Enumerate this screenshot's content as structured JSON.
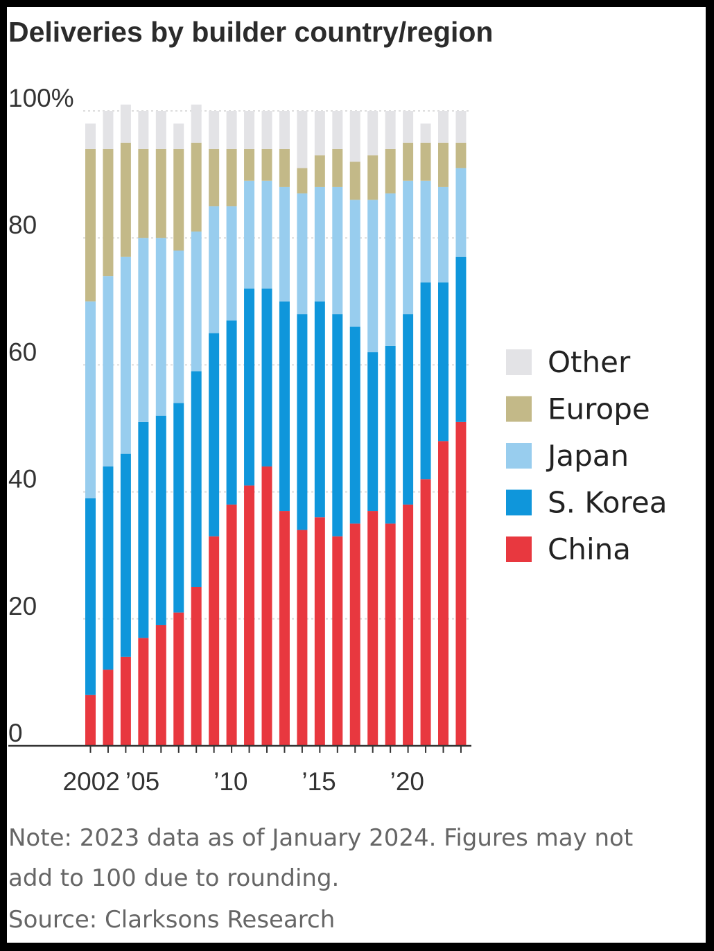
{
  "chart_data": {
    "type": "bar",
    "stacked": true,
    "title": "Deliveries by builder country/region",
    "ylim": [
      0,
      100
    ],
    "y_ticks": [
      {
        "value": 100,
        "label": "100%"
      },
      {
        "value": 80,
        "label": "80"
      },
      {
        "value": 60,
        "label": "60"
      },
      {
        "value": 40,
        "label": "40"
      },
      {
        "value": 20,
        "label": "20"
      },
      {
        "value": 0,
        "label": "0"
      }
    ],
    "x_ticks": [
      {
        "year": 2002,
        "label": "2002"
      },
      {
        "year": 2005,
        "label": "’05"
      },
      {
        "year": 2010,
        "label": "’10"
      },
      {
        "year": 2015,
        "label": "’15"
      },
      {
        "year": 2020,
        "label": "’20"
      }
    ],
    "categories": [
      2002,
      2003,
      2004,
      2005,
      2006,
      2007,
      2008,
      2009,
      2010,
      2011,
      2012,
      2013,
      2014,
      2015,
      2016,
      2017,
      2018,
      2019,
      2020,
      2021,
      2022,
      2023
    ],
    "series": [
      {
        "name": "China",
        "color": "#e8383f",
        "values": [
          8,
          12,
          14,
          17,
          19,
          21,
          25,
          33,
          38,
          41,
          44,
          37,
          34,
          36,
          33,
          35,
          37,
          35,
          38,
          42,
          48,
          51
        ]
      },
      {
        "name": "S. Korea",
        "color": "#0f96db",
        "values": [
          31,
          32,
          32,
          34,
          33,
          33,
          34,
          32,
          29,
          31,
          28,
          33,
          34,
          34,
          35,
          31,
          25,
          28,
          30,
          31,
          25,
          26
        ]
      },
      {
        "name": "Japan",
        "color": "#98cdee",
        "values": [
          31,
          30,
          31,
          29,
          28,
          24,
          22,
          20,
          18,
          17,
          17,
          18,
          19,
          18,
          20,
          20,
          24,
          24,
          21,
          16,
          15,
          14
        ]
      },
      {
        "name": "Europe",
        "color": "#c3b988",
        "values": [
          24,
          20,
          18,
          14,
          14,
          16,
          14,
          9,
          9,
          5,
          5,
          6,
          4,
          5,
          6,
          6,
          7,
          7,
          6,
          6,
          7,
          4
        ]
      },
      {
        "name": "Other",
        "color": "#e3e3e6",
        "values": [
          4,
          6,
          6,
          6,
          6,
          4,
          6,
          6,
          6,
          6,
          6,
          6,
          9,
          7,
          6,
          8,
          7,
          6,
          5,
          3,
          5,
          5
        ]
      }
    ],
    "legend": [
      "Other",
      "Europe",
      "Japan",
      "S. Korea",
      "China"
    ],
    "legend_position": "right"
  },
  "note": {
    "line1": "Note: 2023 data as of January 2024. Figures may not",
    "line2": "add to 100 due to rounding.",
    "source": "Source: Clarksons Research"
  }
}
